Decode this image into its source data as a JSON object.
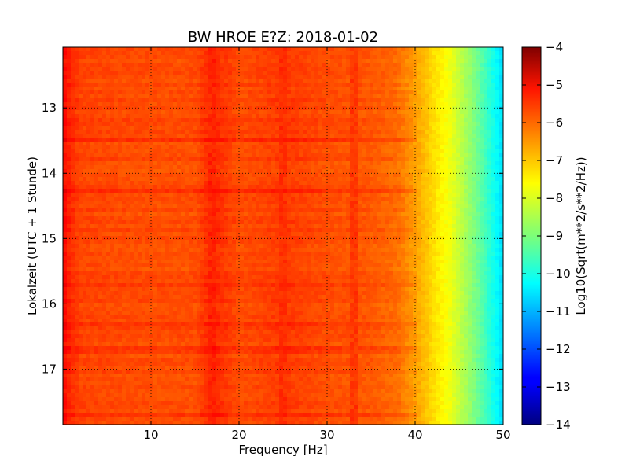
{
  "chart_data": {
    "type": "heatmap",
    "title": "BW HROE E?Z: 2018-01-02",
    "xlabel": "Frequency [Hz]",
    "ylabel": "Lokalzeit (UTC + 1 Stunde)",
    "xlim": [
      0,
      50
    ],
    "ylim": [
      12.07,
      17.85
    ],
    "x_ticks": [
      10,
      20,
      30,
      40,
      50
    ],
    "y_ticks": [
      13,
      14,
      15,
      16,
      17
    ],
    "y_inverted": true,
    "grid": true,
    "colormap": "jet",
    "colorbar": {
      "label": "Log10(Sqrt(m**2/s**2/Hz))",
      "range": [
        -14,
        -4
      ],
      "ticks": [
        -4,
        -5,
        -6,
        -7,
        -8,
        -9,
        -10,
        -11,
        -12,
        -13,
        -14
      ]
    },
    "frequency_profile_hz": [
      0,
      1,
      2,
      5,
      10,
      15,
      17,
      20,
      25,
      30,
      35,
      38,
      40,
      42,
      44,
      46,
      48,
      50
    ],
    "frequency_profile_log10": [
      -5.3,
      -5.7,
      -5.9,
      -5.95,
      -6.0,
      -6.0,
      -5.6,
      -6.0,
      -5.8,
      -6.0,
      -6.1,
      -6.3,
      -6.8,
      -7.4,
      -7.9,
      -8.7,
      -9.6,
      -10.6
    ],
    "band_features_hz": [
      17,
      25,
      33
    ],
    "band_features_log10": [
      -5.6,
      -5.7,
      -5.8
    ]
  }
}
